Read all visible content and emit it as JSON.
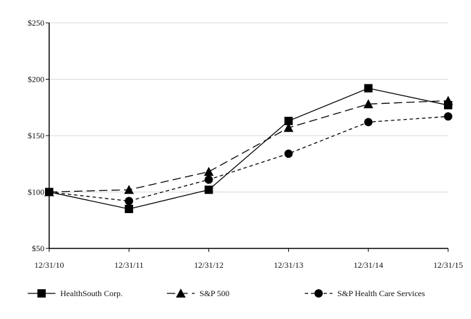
{
  "chart_data": {
    "type": "line",
    "title": "",
    "xlabel": "",
    "ylabel": "",
    "categories": [
      "12/31/10",
      "12/31/11",
      "12/31/12",
      "12/31/13",
      "12/31/14",
      "12/31/15"
    ],
    "ylim": [
      50,
      250
    ],
    "yticks": [
      50,
      100,
      150,
      200,
      250
    ],
    "ytick_labels": [
      "$50",
      "$100",
      "$150",
      "$200",
      "$250"
    ],
    "grid": "horizontal",
    "legend_position": "bottom",
    "series": [
      {
        "name": "HealthSouth Corp.",
        "values": [
          100,
          85,
          102,
          163,
          192,
          177
        ],
        "marker": "square",
        "line_style": "solid",
        "color": "#000000"
      },
      {
        "name": "S&P 500",
        "values": [
          100,
          102,
          118,
          157,
          178,
          181
        ],
        "marker": "triangle",
        "line_style": "long-dash",
        "color": "#000000"
      },
      {
        "name": "S&P Health Care Services",
        "values": [
          100,
          92,
          111,
          134,
          162,
          167
        ],
        "marker": "circle",
        "line_style": "short-dash",
        "color": "#000000"
      }
    ]
  }
}
